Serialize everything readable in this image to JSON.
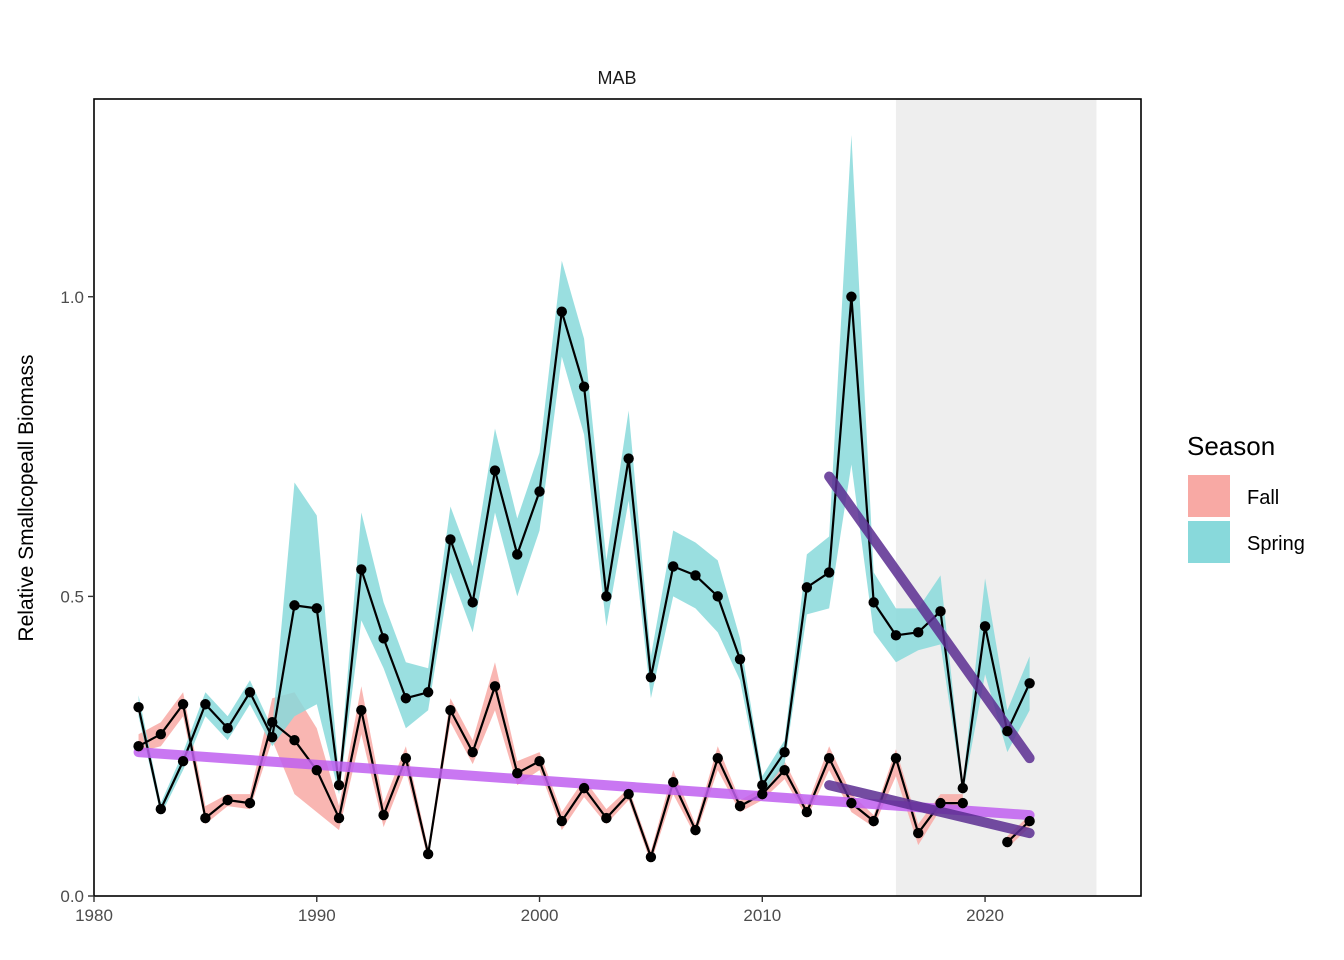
{
  "chart_data": {
    "type": "line",
    "title": "MAB",
    "xlabel": "",
    "ylabel": "Relative Smallcopeall Biomass",
    "xlim": [
      1980,
      2027
    ],
    "ylim": [
      0,
      1.33
    ],
    "x_ticks": [
      1980,
      1990,
      2000,
      2010,
      2020
    ],
    "y_ticks": [
      0.0,
      0.5,
      1.0
    ],
    "x_tick_labels": [
      "1980",
      "1990",
      "2000",
      "2010",
      "2020"
    ],
    "y_tick_labels": [
      "0.0",
      "0.5",
      "1.0"
    ],
    "grid": false,
    "highlight_region": {
      "x": [
        2016,
        2025
      ],
      "color": "#eeeeee"
    },
    "legend": {
      "title": "Season",
      "position": "right",
      "entries": [
        {
          "label": "Fall",
          "color": "#f8a9a4"
        },
        {
          "label": "Spring",
          "color": "#88d9db"
        }
      ]
    },
    "series": [
      {
        "name": "Fall",
        "color": "#f8a9a4",
        "x": [
          1982,
          1983,
          1984,
          1985,
          1986,
          1987,
          1988,
          1989,
          1990,
          1991,
          1992,
          1993,
          1994,
          1995,
          1996,
          1997,
          1998,
          1999,
          2000,
          2001,
          2002,
          2003,
          2004,
          2005,
          2006,
          2007,
          2008,
          2009,
          2010,
          2011,
          2012,
          2013,
          2014,
          2015,
          2016,
          2017,
          2018,
          2019,
          2020,
          2021,
          2022
        ],
        "y": [
          0.25,
          0.27,
          0.32,
          0.13,
          0.16,
          0.155,
          0.29,
          0.26,
          0.21,
          0.13,
          0.31,
          0.135,
          0.23,
          0.07,
          0.31,
          0.24,
          0.35,
          0.205,
          0.225,
          0.125,
          0.18,
          0.13,
          0.17,
          0.065,
          0.19,
          0.11,
          0.23,
          0.15,
          0.17,
          0.21,
          0.14,
          0.23,
          0.155,
          0.125,
          0.23,
          0.105,
          0.155,
          0.155,
          null,
          0.09,
          0.125
        ],
        "lower": [
          0.24,
          0.25,
          0.3,
          0.12,
          0.15,
          0.145,
          0.26,
          0.17,
          0.14,
          0.11,
          0.27,
          0.115,
          0.21,
          0.06,
          0.29,
          0.22,
          0.31,
          0.185,
          0.21,
          0.11,
          0.165,
          0.12,
          0.16,
          0.055,
          0.17,
          0.1,
          0.21,
          0.14,
          0.16,
          0.195,
          0.13,
          0.21,
          0.14,
          0.115,
          0.2,
          0.085,
          0.145,
          0.145,
          null,
          0.08,
          0.115
        ],
        "upper": [
          0.27,
          0.29,
          0.34,
          0.15,
          0.17,
          0.17,
          0.33,
          0.34,
          0.28,
          0.15,
          0.35,
          0.155,
          0.25,
          0.08,
          0.33,
          0.26,
          0.39,
          0.225,
          0.24,
          0.14,
          0.195,
          0.145,
          0.18,
          0.075,
          0.21,
          0.12,
          0.25,
          0.16,
          0.18,
          0.225,
          0.15,
          0.25,
          0.17,
          0.135,
          0.245,
          0.12,
          0.17,
          0.17,
          null,
          0.1,
          0.135
        ]
      },
      {
        "name": "Spring",
        "color": "#88d9db",
        "x": [
          1982,
          1983,
          1984,
          1985,
          1986,
          1987,
          1988,
          1989,
          1990,
          1991,
          1992,
          1993,
          1994,
          1995,
          1996,
          1997,
          1998,
          1999,
          2000,
          2001,
          2002,
          2003,
          2004,
          2005,
          2006,
          2007,
          2008,
          2009,
          2010,
          2011,
          2012,
          2013,
          2014,
          2015,
          2016,
          2017,
          2018,
          2019,
          2020,
          2021,
          2022
        ],
        "y": [
          0.315,
          0.145,
          0.225,
          0.32,
          0.28,
          0.34,
          0.265,
          0.485,
          0.48,
          0.185,
          0.545,
          0.43,
          0.33,
          0.34,
          0.595,
          0.49,
          0.71,
          0.57,
          0.675,
          0.975,
          0.85,
          0.5,
          0.73,
          0.365,
          0.55,
          0.535,
          0.5,
          0.395,
          0.185,
          0.24,
          0.515,
          0.54,
          1.0,
          0.49,
          0.435,
          0.44,
          0.475,
          0.18,
          0.45,
          0.275,
          0.355
        ],
        "lower": [
          0.3,
          0.135,
          0.21,
          0.3,
          0.26,
          0.32,
          0.25,
          0.3,
          0.32,
          0.17,
          0.46,
          0.38,
          0.28,
          0.31,
          0.54,
          0.44,
          0.64,
          0.5,
          0.61,
          0.9,
          0.77,
          0.45,
          0.66,
          0.33,
          0.5,
          0.48,
          0.44,
          0.36,
          0.17,
          0.22,
          0.47,
          0.48,
          0.72,
          0.44,
          0.39,
          0.41,
          0.42,
          0.17,
          0.37,
          0.24,
          0.31
        ],
        "upper": [
          0.335,
          0.155,
          0.24,
          0.34,
          0.3,
          0.36,
          0.28,
          0.69,
          0.635,
          0.2,
          0.64,
          0.49,
          0.39,
          0.38,
          0.65,
          0.55,
          0.78,
          0.63,
          0.74,
          1.06,
          0.93,
          0.56,
          0.81,
          0.4,
          0.61,
          0.59,
          0.56,
          0.43,
          0.2,
          0.26,
          0.57,
          0.6,
          1.27,
          0.54,
          0.48,
          0.48,
          0.535,
          0.19,
          0.53,
          0.31,
          0.4
        ]
      }
    ],
    "trend_lines": [
      {
        "name": "long-term trend (Fall)",
        "color": "#bf5ff0",
        "x": [
          1982,
          2022
        ],
        "y": [
          0.24,
          0.135
        ]
      },
      {
        "name": "short-term trend (Spring)",
        "color": "#5a2d91",
        "x": [
          2013,
          2022
        ],
        "y": [
          0.7,
          0.23
        ]
      },
      {
        "name": "short-term trend (Fall)",
        "color": "#5a2d91",
        "x": [
          2013,
          2022
        ],
        "y": [
          0.185,
          0.105
        ]
      }
    ]
  }
}
